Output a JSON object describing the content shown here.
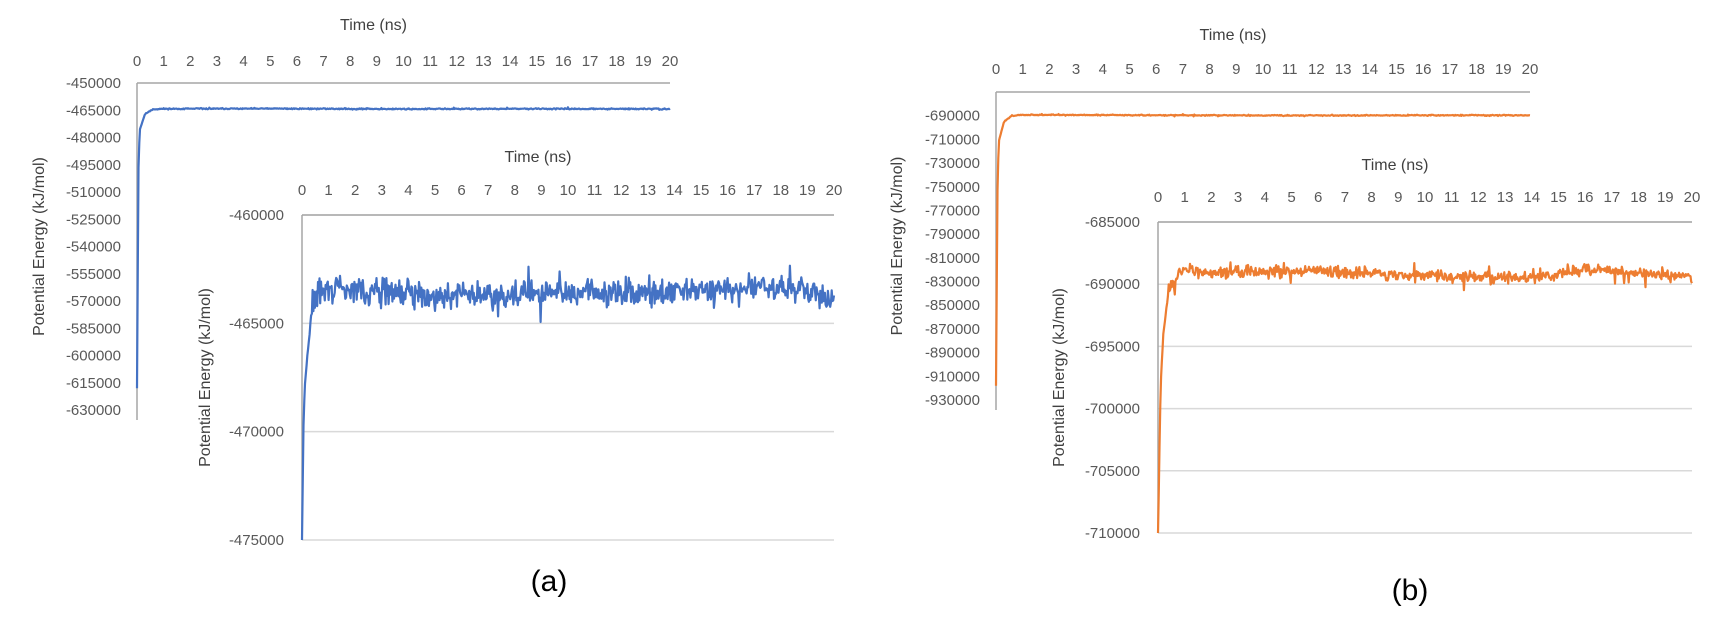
{
  "panel_labels": [
    "(a)",
    "(b)"
  ],
  "colors": {
    "series_a": "#4472C4",
    "series_b": "#ED7D31",
    "axis": "#A6A6A6",
    "grid": "#D9D9D9"
  },
  "chart_data": [
    {
      "id": "a-full",
      "type": "line",
      "xlabel": "Time (ns)",
      "ylabel": "Potential Energy (kJ/mol)",
      "xlim": [
        0,
        20
      ],
      "ylim": [
        -630000,
        -450000
      ],
      "xticks": [
        0,
        1,
        2,
        3,
        4,
        5,
        6,
        7,
        8,
        9,
        10,
        11,
        12,
        13,
        14,
        15,
        16,
        17,
        18,
        19,
        20
      ],
      "yticks": [
        -450000,
        -465000,
        -480000,
        -495000,
        -510000,
        -525000,
        -540000,
        -555000,
        -570000,
        -585000,
        -600000,
        -615000,
        -630000
      ],
      "x_axis_position": "top",
      "grid": false,
      "series": [
        {
          "color": "#4472C4",
          "start_value": -618000,
          "plateau_mean": -464000,
          "plateau_noise": 300,
          "points": [
            [
              0,
              -618000
            ],
            [
              0.05,
              -500000
            ],
            [
              0.1,
              -476000
            ],
            [
              0.3,
              -467000
            ],
            [
              0.6,
              -464500
            ],
            [
              1,
              -464200
            ],
            [
              5,
              -464100
            ],
            [
              10,
              -464300
            ],
            [
              15,
              -464200
            ],
            [
              20,
              -464300
            ]
          ]
        }
      ]
    },
    {
      "id": "a-zoom",
      "type": "line",
      "xlabel": "Time (ns)",
      "ylabel": "Potential Energy (kJ/mol)",
      "xlim": [
        0,
        20
      ],
      "ylim": [
        -475000,
        -460000
      ],
      "xticks": [
        0,
        1,
        2,
        3,
        4,
        5,
        6,
        7,
        8,
        9,
        10,
        11,
        12,
        13,
        14,
        15,
        16,
        17,
        18,
        19,
        20
      ],
      "yticks": [
        -460000,
        -465000,
        -470000,
        -475000
      ],
      "x_axis_position": "top",
      "grid": true,
      "series": [
        {
          "color": "#4472C4",
          "start_value": -475000,
          "plateau_mean": -463600,
          "plateau_noise": 900,
          "points": [
            [
              0,
              -475000
            ],
            [
              0.05,
              -470000
            ],
            [
              0.1,
              -468000
            ],
            [
              0.2,
              -466500
            ],
            [
              0.4,
              -464200
            ],
            [
              0.6,
              -463500
            ],
            [
              1,
              -463400
            ],
            [
              5,
              -463700
            ],
            [
              10,
              -463600
            ],
            [
              15,
              -463500
            ],
            [
              18,
              -463300
            ],
            [
              20,
              -463900
            ]
          ]
        }
      ]
    },
    {
      "id": "b-full",
      "type": "line",
      "xlabel": "Time (ns)",
      "ylabel": "Potential Energy (kJ/mol)",
      "xlim": [
        0,
        20
      ],
      "ylim": [
        -930000,
        -670000
      ],
      "xticks": [
        0,
        1,
        2,
        3,
        4,
        5,
        6,
        7,
        8,
        9,
        10,
        11,
        12,
        13,
        14,
        15,
        16,
        17,
        18,
        19,
        20
      ],
      "yticks": [
        -690000,
        -710000,
        -730000,
        -750000,
        -770000,
        -790000,
        -810000,
        -830000,
        -850000,
        -870000,
        -890000,
        -910000,
        -930000
      ],
      "x_axis_position": "top",
      "grid": false,
      "series": [
        {
          "color": "#ED7D31",
          "start_value": -918000,
          "plateau_mean": -689500,
          "plateau_noise": 400,
          "points": [
            [
              0,
              -918000
            ],
            [
              0.05,
              -760000
            ],
            [
              0.1,
              -712000
            ],
            [
              0.3,
              -695000
            ],
            [
              0.6,
              -690000
            ],
            [
              1,
              -689300
            ],
            [
              5,
              -689500
            ],
            [
              10,
              -689800
            ],
            [
              15,
              -689700
            ],
            [
              20,
              -689600
            ]
          ]
        }
      ]
    },
    {
      "id": "b-zoom",
      "type": "line",
      "xlabel": "Time (ns)",
      "ylabel": "Potential Energy (kJ/mol)",
      "xlim": [
        0,
        20
      ],
      "ylim": [
        -710000,
        -685000
      ],
      "xticks": [
        0,
        1,
        2,
        3,
        4,
        5,
        6,
        7,
        8,
        9,
        10,
        11,
        12,
        13,
        14,
        15,
        16,
        17,
        18,
        19,
        20
      ],
      "yticks": [
        -685000,
        -690000,
        -695000,
        -700000,
        -705000,
        -710000
      ],
      "x_axis_position": "top",
      "grid": true,
      "series": [
        {
          "color": "#ED7D31",
          "start_value": -710000,
          "plateau_mean": -689200,
          "plateau_noise": 700,
          "points": [
            [
              0,
              -710000
            ],
            [
              0.05,
              -704000
            ],
            [
              0.1,
              -698000
            ],
            [
              0.2,
              -694000
            ],
            [
              0.4,
              -690500
            ],
            [
              0.8,
              -689000
            ],
            [
              2,
              -689000
            ],
            [
              6,
              -689000
            ],
            [
              10,
              -689300
            ],
            [
              14,
              -689500
            ],
            [
              16,
              -688800
            ],
            [
              20,
              -689400
            ]
          ]
        }
      ]
    }
  ]
}
